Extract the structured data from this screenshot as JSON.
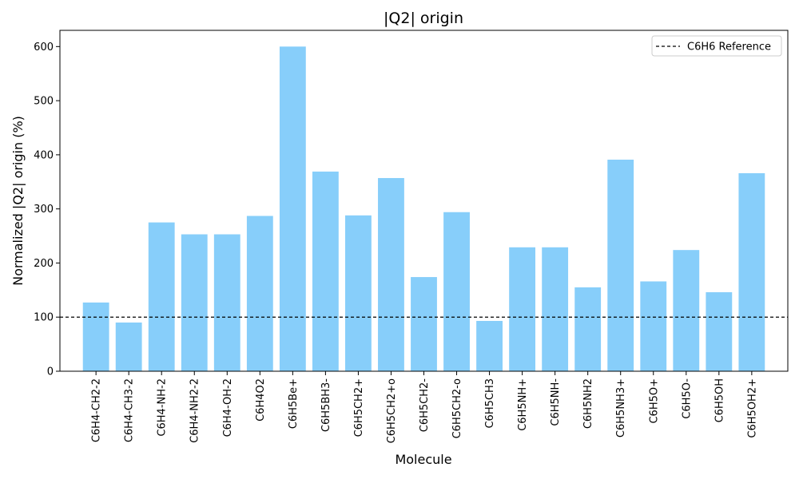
{
  "chart_data": {
    "type": "bar",
    "title": "|Q2| origin",
    "xlabel": "Molecule",
    "ylabel": "Normalized |Q2| origin (%)",
    "categories": [
      "C6H4-CH2-2",
      "C6H4-CH3-2",
      "C6H4-NH-2",
      "C6H4-NH2-2",
      "C6H4-OH-2",
      "C6H4O2",
      "C6H5Be+",
      "C6H5BH3-",
      "C6H5CH2+",
      "C6H5CH2+o",
      "C6H5CH2-",
      "C6H5CH2-o",
      "C6H5CH3",
      "C6H5NH+",
      "C6H5NH-",
      "C6H5NH2",
      "C6H5NH3+",
      "C6H5O+",
      "C6H5O-",
      "C6H5OH",
      "C6H5OH2+"
    ],
    "values": [
      127,
      90,
      275,
      253,
      253,
      287,
      600,
      369,
      288,
      357,
      174,
      294,
      93,
      229,
      229,
      155,
      391,
      166,
      224,
      146,
      366
    ],
    "ylim": [
      0,
      630
    ],
    "yticks": [
      0,
      100,
      200,
      300,
      400,
      500,
      600
    ],
    "bar_color": "#87cefa",
    "reference": {
      "label": "C6H6 Reference",
      "value": 100,
      "color": "#000000",
      "style": "dashed"
    },
    "legend_position": "top-right",
    "grid": false
  }
}
